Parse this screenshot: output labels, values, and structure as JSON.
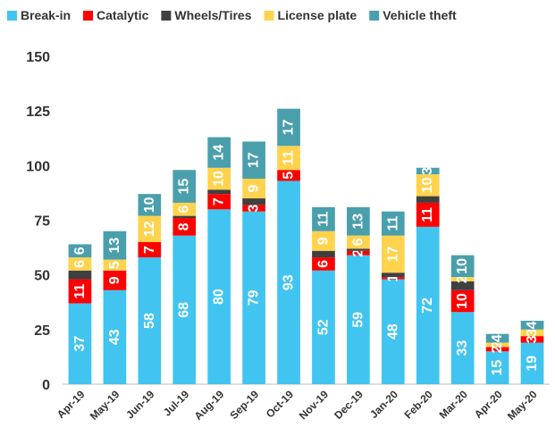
{
  "chart_data": {
    "type": "stacked_bar",
    "categories": [
      "Apr-19",
      "May-19",
      "Jun-19",
      "Jul-19",
      "Aug-19",
      "Sep-19",
      "Oct-19",
      "Nov-19",
      "Dec-19",
      "Jan-20",
      "Feb-20",
      "Mar-20",
      "Apr-20",
      "May-20"
    ],
    "series": [
      {
        "name": "Break-in",
        "color": "#41c4f0",
        "show_labels": true,
        "values": [
          37,
          43,
          58,
          68,
          80,
          79,
          93,
          52,
          59,
          48,
          72,
          33,
          15,
          19
        ]
      },
      {
        "name": "Catalytic",
        "color": "#ff0000",
        "show_labels": true,
        "values": [
          11,
          9,
          7,
          8,
          7,
          3,
          5,
          6,
          2,
          1,
          11,
          10,
          2,
          3
        ]
      },
      {
        "name": "Wheels/Tires",
        "color": "#404040",
        "show_labels": false,
        "values": [
          4,
          0,
          0,
          1,
          2,
          3,
          0,
          3,
          1,
          2,
          3,
          4,
          0,
          0
        ]
      },
      {
        "name": "License plate",
        "color": "#ffd34d",
        "show_labels": true,
        "values": [
          6,
          5,
          12,
          6,
          10,
          9,
          11,
          9,
          6,
          17,
          10,
          2,
          2,
          3
        ]
      },
      {
        "name": "Vehicle theft",
        "color": "#4a9fad",
        "show_labels": true,
        "values": [
          6,
          13,
          10,
          15,
          14,
          17,
          17,
          11,
          13,
          11,
          3,
          10,
          4,
          4
        ]
      }
    ],
    "ylim": [
      0,
      150
    ],
    "yticks": [
      0,
      25,
      50,
      75,
      100,
      125,
      150
    ],
    "grid": false,
    "legend": "top"
  }
}
